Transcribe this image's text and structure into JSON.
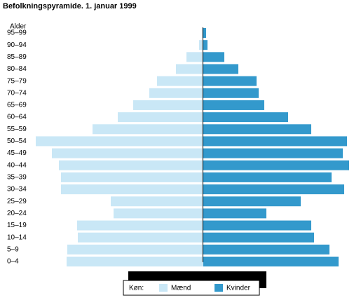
{
  "chart_data": {
    "type": "pyramid",
    "title": "Befolkningspyramide. 1. januar 1999",
    "y_label": "Alder",
    "categories": [
      "95–99",
      "90–94",
      "85–89",
      "80–84",
      "75–79",
      "70–74",
      "65–69",
      "60–64",
      "55–59",
      "50–54",
      "45–49",
      "40–44",
      "35–39",
      "30–34",
      "25–29",
      "20–24",
      "15–19",
      "10–14",
      "5–9",
      "0–4"
    ],
    "legend_title": "Køn:",
    "series": [
      {
        "name": "Mænd",
        "color": "#c9e7f6",
        "side": "left",
        "values": [
          2,
          6,
          24,
          39,
          66,
          77,
          100,
          122,
          158,
          239,
          216,
          206,
          203,
          203,
          132,
          128,
          180,
          179,
          194,
          195
        ]
      },
      {
        "name": "Kvinder",
        "color": "#3399cc",
        "side": "right",
        "values": [
          4,
          6,
          30,
          50,
          76,
          79,
          87,
          121,
          154,
          205,
          199,
          208,
          183,
          201,
          139,
          90,
          154,
          158,
          180,
          193
        ]
      }
    ]
  }
}
